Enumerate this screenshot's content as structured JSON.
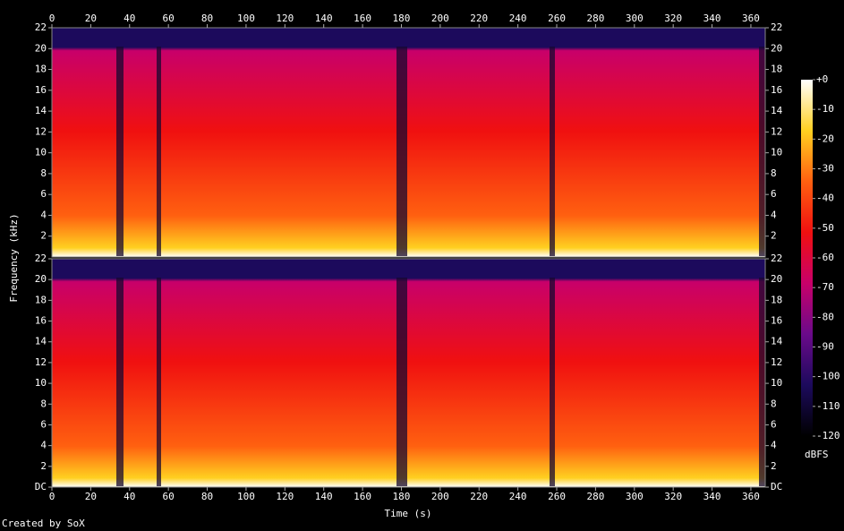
{
  "chart_data": {
    "type": "spectrogram",
    "xlabel": "Time (s)",
    "ylabel": "Frequency (kHz)",
    "footer": "Created by SoX",
    "xlim": [
      0,
      367.4
    ],
    "xticks": [
      0,
      20,
      40,
      60,
      80,
      100,
      120,
      140,
      160,
      180,
      200,
      220,
      240,
      260,
      280,
      300,
      320,
      340,
      360
    ],
    "panels": [
      {
        "ylim": [
          0,
          22
        ],
        "yticks": [
          2,
          4,
          6,
          8,
          10,
          12,
          14,
          16,
          18,
          20,
          22
        ]
      },
      {
        "ylim": [
          0,
          22
        ],
        "yticks": [
          {
            "value": 0,
            "label": "DC"
          },
          2,
          4,
          6,
          8,
          10,
          12,
          14,
          16,
          18,
          20,
          22
        ]
      }
    ],
    "colorbar": {
      "label": "dBFS",
      "ylim": [
        -120,
        0
      ],
      "yticks": [
        {
          "value": 0,
          "label": "+0"
        },
        -10,
        -20,
        -30,
        -40,
        -50,
        -60,
        -70,
        -80,
        -90,
        -100,
        -110,
        -120
      ],
      "colors": [
        "#000000",
        "#1c0a5c",
        "#6a0a8a",
        "#c8006a",
        "#f01010",
        "#ff6010",
        "#ffd020",
        "#ffffff"
      ]
    }
  }
}
